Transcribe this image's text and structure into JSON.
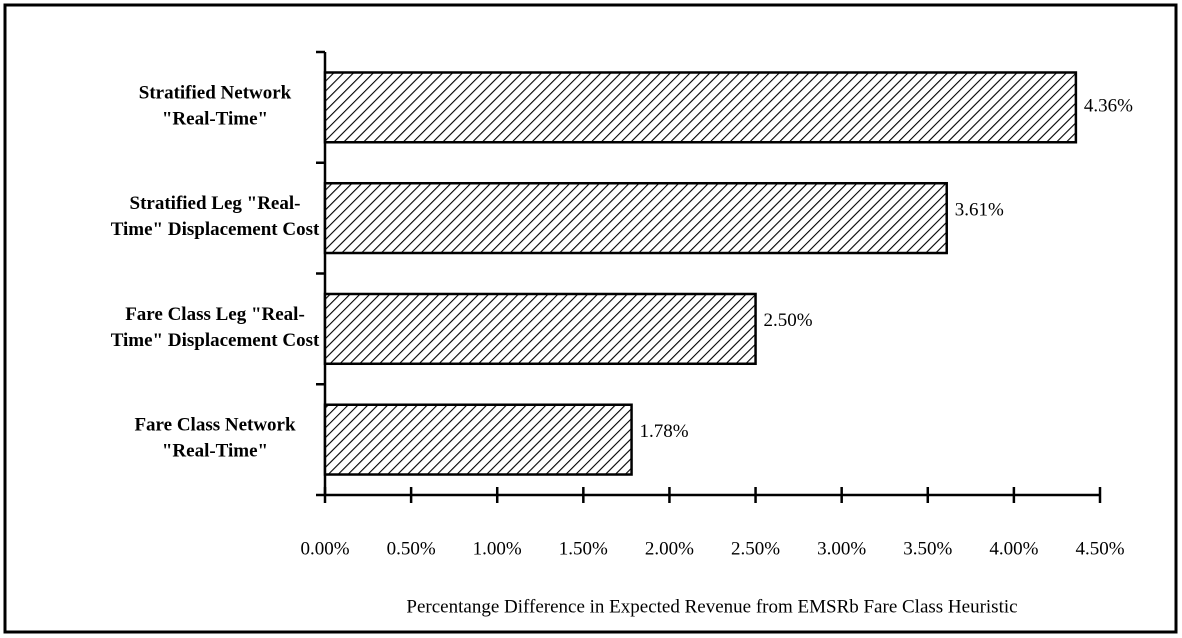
{
  "chart_data": {
    "type": "hbar",
    "categories": [
      [
        "Stratified Network",
        "\"Real-Time\""
      ],
      [
        "Stratified Leg \"Real-",
        "Time\" Displacement Cost"
      ],
      [
        "Fare Class Leg \"Real-",
        "Time\" Displacement Cost"
      ],
      [
        "Fare Class Network",
        "\"Real-Time\""
      ]
    ],
    "values": [
      4.36,
      3.61,
      2.5,
      1.78
    ],
    "value_labels": [
      "4.36%",
      "3.61%",
      "2.50%",
      "1.78%"
    ],
    "xlim": [
      0,
      4.5
    ],
    "xticks": [
      {
        "value": 0,
        "label": "0.00%"
      },
      {
        "value": 0.5,
        "label": "0.50%"
      },
      {
        "value": 1,
        "label": "1.00%"
      },
      {
        "value": 1.5,
        "label": "1.50%"
      },
      {
        "value": 2,
        "label": "2.00%"
      },
      {
        "value": 2.5,
        "label": "2.50%"
      },
      {
        "value": 3,
        "label": "3.00%"
      },
      {
        "value": 3.5,
        "label": "3.50%"
      },
      {
        "value": 4,
        "label": "4.00%"
      },
      {
        "value": 4.5,
        "label": "4.50%"
      }
    ],
    "xlabel": "Percentange Difference in Expected Revenue from EMSRb Fare Class Heuristic",
    "grid": false,
    "color": "#000000"
  }
}
